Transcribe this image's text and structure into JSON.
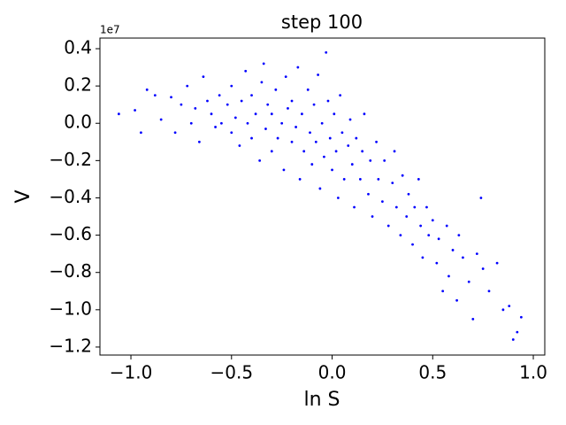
{
  "chart_data": {
    "type": "scatter",
    "title": "step 100",
    "x_label": "ln S",
    "y_label": "V",
    "y_offset_label": "1e7",
    "color": "#0000ff",
    "xlim": [
      -1.154,
      1.057
    ],
    "ylim": [
      -1.243,
      0.457
    ],
    "xticks": [
      {
        "value": -1.0,
        "label": "−1.0"
      },
      {
        "value": -0.5,
        "label": "−0.5"
      },
      {
        "value": 0.0,
        "label": "0.0"
      },
      0.5,
      {
        "value": 1.0,
        "label": "1.0"
      }
    ],
    "yticks": [
      {
        "value": -1.2,
        "label": "−1.2"
      },
      {
        "value": -1.0,
        "label": "−1.0"
      },
      {
        "value": -0.8,
        "label": "−0.8"
      },
      {
        "value": -0.6,
        "label": "−0.6"
      },
      {
        "value": -0.4,
        "label": "−0.4"
      },
      {
        "value": -0.2,
        "label": "−0.2"
      },
      {
        "value": 0.0,
        "label": "0.0"
      },
      0.2,
      0.4
    ],
    "x": [
      -1.06,
      -0.98,
      -0.95,
      -0.92,
      -0.88,
      -0.85,
      -0.8,
      -0.78,
      -0.75,
      -0.72,
      -0.7,
      -0.68,
      -0.66,
      -0.64,
      -0.62,
      -0.6,
      -0.58,
      -0.56,
      -0.55,
      -0.52,
      -0.5,
      -0.5,
      -0.48,
      -0.46,
      -0.45,
      -0.43,
      -0.42,
      -0.4,
      -0.4,
      -0.38,
      -0.36,
      -0.35,
      -0.34,
      -0.33,
      -0.32,
      -0.3,
      -0.3,
      -0.28,
      -0.27,
      -0.25,
      -0.24,
      -0.23,
      -0.22,
      -0.2,
      -0.2,
      -0.18,
      -0.17,
      -0.16,
      -0.15,
      -0.14,
      -0.12,
      -0.11,
      -0.1,
      -0.09,
      -0.08,
      -0.07,
      -0.06,
      -0.05,
      -0.04,
      -0.03,
      -0.02,
      -0.01,
      0.0,
      0.01,
      0.02,
      0.03,
      0.04,
      0.05,
      0.06,
      0.08,
      0.09,
      0.1,
      0.11,
      0.12,
      0.14,
      0.15,
      0.16,
      0.18,
      0.19,
      0.2,
      0.22,
      0.23,
      0.25,
      0.26,
      0.28,
      0.3,
      0.31,
      0.32,
      0.34,
      0.35,
      0.37,
      0.38,
      0.4,
      0.41,
      0.43,
      0.44,
      0.45,
      0.47,
      0.48,
      0.5,
      0.52,
      0.53,
      0.55,
      0.57,
      0.58,
      0.6,
      0.62,
      0.63,
      0.65,
      0.68,
      0.7,
      0.72,
      0.74,
      0.75,
      0.78,
      0.82,
      0.85,
      0.88,
      0.9,
      0.92,
      0.94
    ],
    "values": [
      0.05,
      0.07,
      -0.05,
      0.18,
      0.15,
      0.02,
      0.14,
      -0.05,
      0.1,
      0.2,
      0.0,
      0.08,
      -0.1,
      0.25,
      0.12,
      0.05,
      -0.02,
      0.15,
      0.0,
      0.1,
      -0.05,
      0.2,
      0.03,
      -0.12,
      0.12,
      0.28,
      0.0,
      -0.08,
      0.15,
      0.05,
      -0.2,
      0.22,
      0.32,
      -0.03,
      0.1,
      -0.15,
      0.05,
      0.18,
      -0.08,
      0.0,
      -0.25,
      0.25,
      0.08,
      -0.1,
      0.12,
      -0.02,
      0.3,
      -0.3,
      0.05,
      -0.15,
      0.18,
      -0.05,
      -0.22,
      0.1,
      -0.1,
      0.26,
      -0.35,
      0.0,
      -0.18,
      0.38,
      0.12,
      -0.08,
      -0.25,
      0.05,
      -0.15,
      -0.4,
      0.15,
      -0.05,
      -0.3,
      -0.12,
      0.02,
      -0.22,
      -0.45,
      -0.08,
      -0.3,
      -0.15,
      0.05,
      -0.38,
      -0.2,
      -0.5,
      -0.1,
      -0.3,
      -0.42,
      -0.2,
      -0.55,
      -0.32,
      -0.15,
      -0.45,
      -0.6,
      -0.28,
      -0.5,
      -0.38,
      -0.65,
      -0.45,
      -0.3,
      -0.55,
      -0.72,
      -0.45,
      -0.6,
      -0.52,
      -0.75,
      -0.62,
      -0.9,
      -0.55,
      -0.82,
      -0.68,
      -0.95,
      -0.6,
      -0.72,
      -0.85,
      -1.05,
      -0.7,
      -0.4,
      -0.78,
      -0.9,
      -0.75,
      -1.0,
      -0.98,
      -1.16,
      -1.12,
      -1.04
    ]
  }
}
